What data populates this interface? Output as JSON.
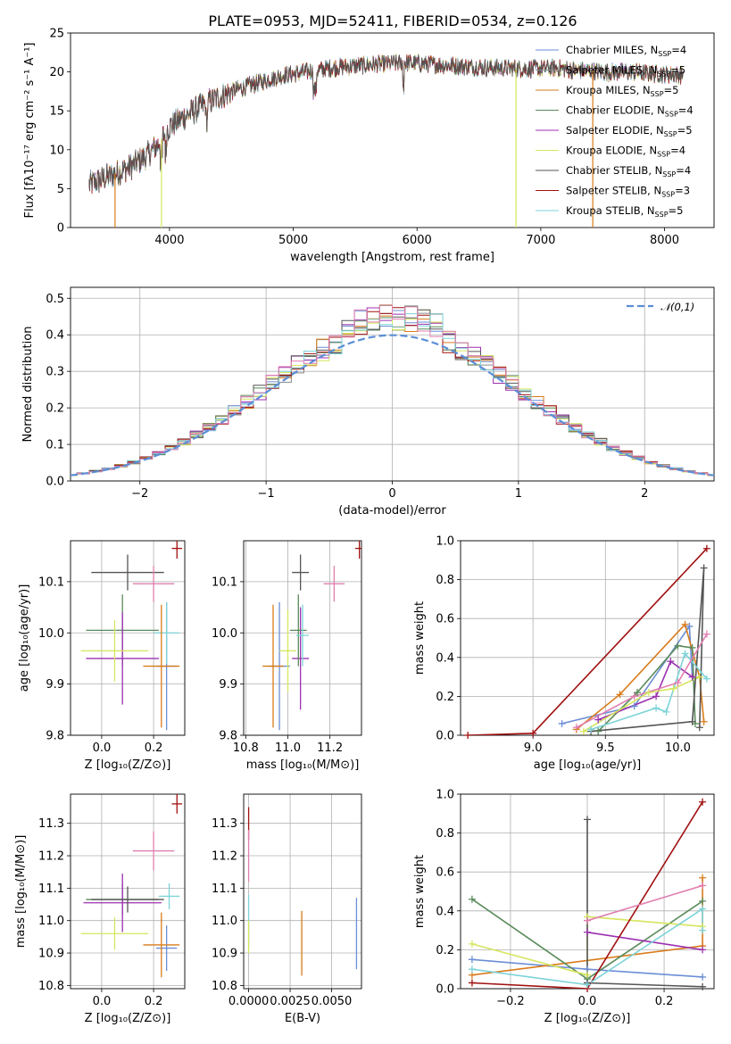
{
  "figure": {
    "title": "PLATE=0953, MJD=52411, FIBERID=0534, z=0.126",
    "model_colors": [
      "#6b8ed6",
      "#8a8a8a",
      "#d97b1a",
      "#5a8a5a",
      "#9b30b0",
      "#d6e65c",
      "#555555",
      "#a01010",
      "#7dd3d8"
    ],
    "pink": "#e07fb0"
  },
  "chart_data": [
    {
      "id": "spectrum",
      "type": "line",
      "xlabel": "wavelength [Angstrom, rest frame]",
      "ylabel": "Flux [f_λ 10^-17 erg cm^-2 s^-1 A^-1]",
      "xlim": [
        3200,
        8400
      ],
      "ylim": [
        0,
        25
      ],
      "xticks": [
        4000,
        5000,
        6000,
        7000,
        8000
      ],
      "yticks": [
        0,
        5,
        10,
        15,
        20,
        25
      ],
      "legend_position": "upper right",
      "series": [
        {
          "name": "Chabrier MILES, N_SSP=4",
          "color": "#6b8ed6"
        },
        {
          "name": "Salpeter MILES, N_SSP=5",
          "color": "#8a8a8a"
        },
        {
          "name": "Kroupa MILES, N_SSP=5",
          "color": "#d97b1a"
        },
        {
          "name": "Chabrier ELODIE, N_SSP=4",
          "color": "#5a8a5a"
        },
        {
          "name": "Salpeter ELODIE, N_SSP=5",
          "color": "#9b30b0"
        },
        {
          "name": "Kroupa ELODIE, N_SSP=4",
          "color": "#d6e65c"
        },
        {
          "name": "Chabrier STELIB, N_SSP=4",
          "color": "#555555"
        },
        {
          "name": "Salpeter STELIB, N_SSP=3",
          "color": "#a01010"
        },
        {
          "name": "Kroupa STELIB, N_SSP=5",
          "color": "#7dd3d8"
        }
      ],
      "continuum": {
        "x": [
          3350,
          3500,
          3650,
          3800,
          3900,
          4000,
          4100,
          4200,
          4300,
          4500,
          4700,
          4900,
          5100,
          5300,
          5500,
          5700,
          5900,
          6100,
          6300,
          6500,
          6700,
          6900,
          7100,
          7300,
          7500,
          7700,
          7900,
          8150
        ],
        "y": [
          5.5,
          6.5,
          7.5,
          9.0,
          10.5,
          13.0,
          14.0,
          15.0,
          16.0,
          17.5,
          18.5,
          19.5,
          20.0,
          20.5,
          20.8,
          21.0,
          21.2,
          21.0,
          20.8,
          20.6,
          20.5,
          20.4,
          20.5,
          20.2,
          20.0,
          20.0,
          19.8,
          19.6
        ]
      },
      "dips": [
        {
          "x": 3935,
          "series": "Kroupa ELODIE, N_SSP=4",
          "y": 0
        },
        {
          "x": 3560,
          "series": "Kroupa MILES, N_SSP=5",
          "y": 0
        },
        {
          "x": 6800,
          "series": "Kroupa ELODIE, N_SSP=4",
          "y": 0
        },
        {
          "x": 7420,
          "series": "Kroupa MILES, N_SSP=5",
          "y": 0
        }
      ]
    },
    {
      "id": "residuals",
      "type": "step",
      "xlabel": "(data-model)/error",
      "ylabel": "Normed distribution",
      "xlim": [
        -2.55,
        2.55
      ],
      "ylim": [
        0,
        0.53
      ],
      "xticks": [
        -2,
        -1,
        0,
        1,
        2
      ],
      "yticks": [
        0.0,
        0.1,
        0.2,
        0.3,
        0.4,
        0.5
      ],
      "legend": "𝒩(0,1)",
      "legend_position": "upper right",
      "gaussian": {
        "mean": 0,
        "sigma": 1,
        "color": "#5b8ed6"
      }
    },
    {
      "id": "age-vs-Z",
      "type": "errorbar",
      "xlabel": "Z [log10(Z/Z⊙)]",
      "ylabel": "age [log10(age/yr)]",
      "xlim": [
        -0.12,
        0.32
      ],
      "ylim": [
        9.8,
        10.18
      ],
      "xticks": [
        0.0,
        0.2
      ],
      "yticks": [
        9.8,
        9.9,
        10.0,
        10.1
      ],
      "points": [
        {
          "x": 0.25,
          "y": 9.935,
          "xerr": 0.04,
          "yerr": 0.125,
          "color": "#6b8ed6"
        },
        {
          "x": 0.25,
          "y": 10.0,
          "xerr": 0.05,
          "yerr": 0.06,
          "color": "#7dd3d8"
        },
        {
          "x": 0.23,
          "y": 9.935,
          "xerr": 0.07,
          "yerr": 0.12,
          "color": "#d97b1a"
        },
        {
          "x": 0.08,
          "y": 10.005,
          "xerr": 0.14,
          "yerr": 0.07,
          "color": "#5a8a5a"
        },
        {
          "x": 0.08,
          "y": 9.95,
          "xerr": 0.14,
          "yerr": 0.09,
          "color": "#9b30b0"
        },
        {
          "x": 0.05,
          "y": 9.965,
          "xerr": 0.13,
          "yerr": 0.06,
          "color": "#d6e65c"
        },
        {
          "x": 0.1,
          "y": 10.118,
          "xerr": 0.14,
          "yerr": 0.035,
          "color": "#555555"
        },
        {
          "x": 0.2,
          "y": 10.096,
          "xerr": 0.08,
          "yerr": 0.035,
          "color": "#e07fb0"
        },
        {
          "x": 0.29,
          "y": 10.165,
          "xerr": 0.02,
          "yerr": 0.02,
          "color": "#a01010"
        }
      ]
    },
    {
      "id": "age-vs-mass",
      "type": "errorbar",
      "xlabel": "mass [log10(M/M⊙)]",
      "ylabel": "",
      "xlim": [
        10.79,
        11.35
      ],
      "ylim": [
        9.8,
        10.18
      ],
      "xticks": [
        10.8,
        11.0,
        11.2
      ],
      "yticks": [
        9.8,
        9.9,
        10.0,
        10.1
      ],
      "points": [
        {
          "x": 10.96,
          "y": 9.935,
          "xerr": 0.05,
          "yerr": 0.125,
          "color": "#6b8ed6"
        },
        {
          "x": 11.06,
          "y": 9.95,
          "xerr": 0.04,
          "yerr": 0.1,
          "color": "#9b30b0"
        },
        {
          "x": 10.93,
          "y": 9.935,
          "xerr": 0.05,
          "yerr": 0.12,
          "color": "#d97b1a"
        },
        {
          "x": 11.05,
          "y": 10.005,
          "xerr": 0.04,
          "yerr": 0.07,
          "color": "#5a8a5a"
        },
        {
          "x": 11.0,
          "y": 9.965,
          "xerr": 0.04,
          "yerr": 0.08,
          "color": "#d6e65c"
        },
        {
          "x": 11.07,
          "y": 9.995,
          "xerr": 0.03,
          "yerr": 0.06,
          "color": "#7dd3d8"
        },
        {
          "x": 11.06,
          "y": 10.118,
          "xerr": 0.04,
          "yerr": 0.035,
          "color": "#555555"
        },
        {
          "x": 11.22,
          "y": 10.096,
          "xerr": 0.05,
          "yerr": 0.035,
          "color": "#e07fb0"
        },
        {
          "x": 11.34,
          "y": 10.165,
          "xerr": 0.02,
          "yerr": 0.02,
          "color": "#a01010"
        }
      ]
    },
    {
      "id": "massweight-vs-age",
      "type": "line",
      "xlabel": "age [log10(age/yr)]",
      "ylabel": "mass weight",
      "xlim": [
        8.5,
        10.25
      ],
      "ylim": [
        0,
        1.0
      ],
      "xticks": [
        9.0,
        9.5,
        10.0
      ],
      "yticks": [
        0.0,
        0.2,
        0.4,
        0.6,
        0.8,
        1.0
      ],
      "series": [
        {
          "color": "#6b8ed6",
          "x": [
            9.2,
            9.7,
            10.08,
            10.1
          ],
          "y": [
            0.06,
            0.15,
            0.56,
            0.3
          ]
        },
        {
          "color": "#d97b1a",
          "x": [
            9.3,
            9.6,
            10.05,
            10.15,
            10.18
          ],
          "y": [
            0.03,
            0.21,
            0.57,
            0.3,
            0.07
          ]
        },
        {
          "color": "#5a8a5a",
          "x": [
            9.45,
            9.72,
            10.0,
            10.1,
            10.12
          ],
          "y": [
            0.02,
            0.22,
            0.46,
            0.45,
            0.06
          ]
        },
        {
          "color": "#9b30b0",
          "x": [
            9.45,
            9.85,
            9.95,
            10.1
          ],
          "y": [
            0.08,
            0.2,
            0.38,
            0.3
          ]
        },
        {
          "color": "#d6e65c",
          "x": [
            9.35,
            9.8,
            9.97,
            10.15
          ],
          "y": [
            0.02,
            0.22,
            0.24,
            0.3
          ]
        },
        {
          "color": "#555555",
          "x": [
            9.4,
            10.1,
            10.18,
            10.15
          ],
          "y": [
            0.02,
            0.07,
            0.86,
            0.04
          ]
        },
        {
          "color": "#a01010",
          "x": [
            8.55,
            9.0,
            10.2
          ],
          "y": [
            0.0,
            0.01,
            0.96
          ]
        },
        {
          "color": "#7dd3d8",
          "x": [
            9.4,
            9.85,
            9.92,
            10.05,
            10.2
          ],
          "y": [
            0.03,
            0.14,
            0.12,
            0.42,
            0.29
          ]
        },
        {
          "color": "#e07fb0",
          "x": [
            9.3,
            9.7,
            10.0,
            10.2
          ],
          "y": [
            0.04,
            0.2,
            0.27,
            0.52
          ]
        }
      ]
    },
    {
      "id": "mass-vs-Z",
      "type": "errorbar",
      "xlabel": "Z [log10(Z/Z⊙)]",
      "ylabel": "mass [log10(M/M⊙)]",
      "xlim": [
        -0.12,
        0.32
      ],
      "ylim": [
        10.79,
        11.39
      ],
      "xticks": [
        0.0,
        0.2
      ],
      "yticks": [
        10.8,
        10.9,
        11.0,
        11.1,
        11.2,
        11.3
      ],
      "points": [
        {
          "x": 0.25,
          "y": 10.915,
          "xerr": 0.04,
          "yerr": 0.07,
          "color": "#6b8ed6"
        },
        {
          "x": 0.26,
          "y": 11.075,
          "xerr": 0.04,
          "yerr": 0.04,
          "color": "#7dd3d8"
        },
        {
          "x": 0.23,
          "y": 10.925,
          "xerr": 0.07,
          "yerr": 0.1,
          "color": "#d97b1a"
        },
        {
          "x": 0.08,
          "y": 11.065,
          "xerr": 0.14,
          "yerr": 0.05,
          "color": "#5a8a5a"
        },
        {
          "x": 0.08,
          "y": 11.055,
          "xerr": 0.15,
          "yerr": 0.09,
          "color": "#9b30b0"
        },
        {
          "x": 0.05,
          "y": 10.96,
          "xerr": 0.13,
          "yerr": 0.05,
          "color": "#d6e65c"
        },
        {
          "x": 0.1,
          "y": 11.065,
          "xerr": 0.14,
          "yerr": 0.04,
          "color": "#555555"
        },
        {
          "x": 0.2,
          "y": 11.215,
          "xerr": 0.08,
          "yerr": 0.06,
          "color": "#e07fb0"
        },
        {
          "x": 0.29,
          "y": 11.36,
          "xerr": 0.02,
          "yerr": 0.03,
          "color": "#a01010"
        }
      ]
    },
    {
      "id": "mass-vs-EBV",
      "type": "errorbar",
      "xlabel": "E(B-V)",
      "ylabel": "",
      "xlim": [
        -0.0003,
        0.0068
      ],
      "ylim": [
        10.79,
        11.39
      ],
      "xticks": [
        0.0,
        0.0025,
        0.005
      ],
      "xticklabels": [
        "0.0000",
        "0.0025",
        "0.0050"
      ],
      "yticks": [
        10.8,
        10.9,
        11.0,
        11.1,
        11.2,
        11.3
      ],
      "points": [
        {
          "x": 0.0,
          "y": 11.3,
          "xerr": 0,
          "yerr": 0.05,
          "color": "#a01010"
        },
        {
          "x": 0.0,
          "y": 11.2,
          "xerr": 0,
          "yerr": 0.08,
          "color": "#e07fb0"
        },
        {
          "x": 0.0,
          "y": 11.0,
          "xerr": 0,
          "yerr": 0.08,
          "color": "#7dd3d8"
        },
        {
          "x": 0.0,
          "y": 10.95,
          "xerr": 0,
          "yerr": 0.05,
          "color": "#d6e65c"
        },
        {
          "x": 0.0032,
          "y": 10.93,
          "xerr": 0,
          "yerr": 0.1,
          "color": "#d97b1a"
        },
        {
          "x": 0.0065,
          "y": 10.96,
          "xerr": 0,
          "yerr": 0.11,
          "color": "#6b8ed6"
        }
      ]
    },
    {
      "id": "massweight-vs-Z",
      "type": "line",
      "xlabel": "Z [log10(Z/Z⊙)]",
      "ylabel": "mass weight",
      "xlim": [
        -0.33,
        0.33
      ],
      "ylim": [
        0,
        1.0
      ],
      "xticks": [
        -0.2,
        0.0,
        0.2
      ],
      "yticks": [
        0.0,
        0.2,
        0.4,
        0.6,
        0.8,
        1.0
      ],
      "series": [
        {
          "color": "#6b8ed6",
          "x": [
            -0.3,
            0.0,
            0.3
          ],
          "y": [
            0.15,
            0.1,
            0.06
          ]
        },
        {
          "color": "#d97b1a",
          "x": [
            -0.3,
            0.3,
            0.3
          ],
          "y": [
            0.07,
            0.22,
            0.57
          ]
        },
        {
          "color": "#5a8a5a",
          "x": [
            -0.3,
            0.0,
            0.3
          ],
          "y": [
            0.46,
            0.05,
            0.45
          ]
        },
        {
          "color": "#9b30b0",
          "x": [
            0.0,
            0.3
          ],
          "y": [
            0.29,
            0.2
          ]
        },
        {
          "color": "#d6e65c",
          "x": [
            -0.3,
            0.0,
            0.0,
            0.3
          ],
          "y": [
            0.23,
            0.07,
            0.37,
            0.32
          ]
        },
        {
          "color": "#555555",
          "x": [
            0.0,
            0.0,
            0.3
          ],
          "y": [
            0.87,
            0.03,
            0.01
          ]
        },
        {
          "color": "#a01010",
          "x": [
            -0.3,
            0.0,
            0.3
          ],
          "y": [
            0.03,
            0.0,
            0.96
          ]
        },
        {
          "color": "#7dd3d8",
          "x": [
            -0.3,
            0.0,
            0.3,
            0.3
          ],
          "y": [
            0.1,
            0.02,
            0.41,
            0.3
          ]
        },
        {
          "color": "#e07fb0",
          "x": [
            0.0,
            0.3
          ],
          "y": [
            0.35,
            0.53
          ]
        }
      ]
    }
  ]
}
